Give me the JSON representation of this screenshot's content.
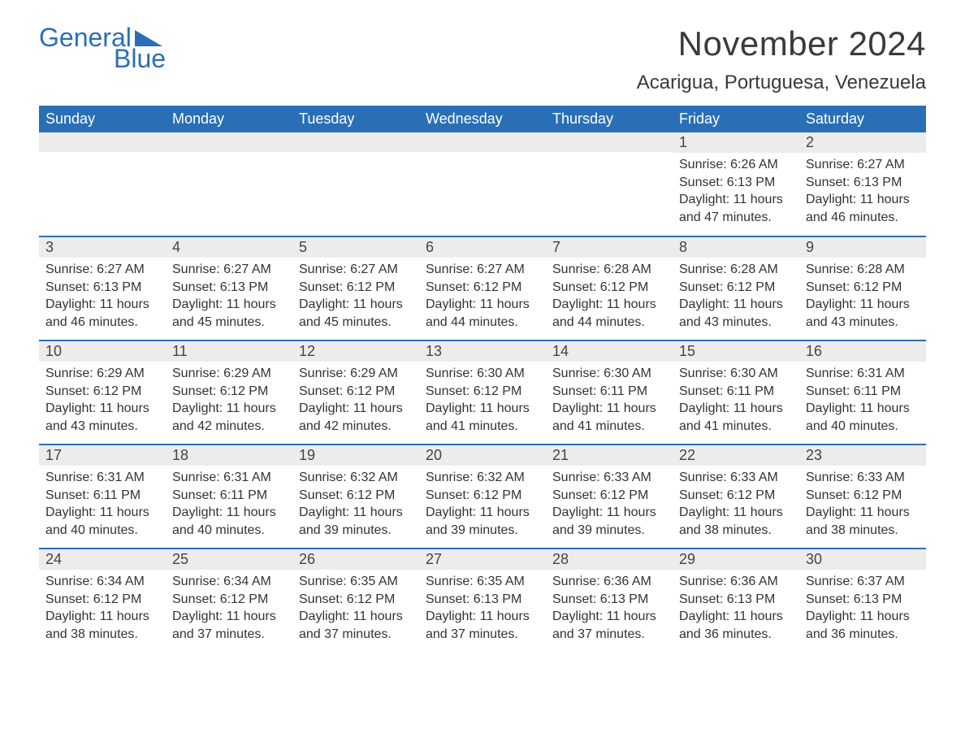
{
  "logo": {
    "text_top": "General",
    "text_bottom": "Blue",
    "color": "#2a6fb6"
  },
  "title": "November 2024",
  "location": "Acarigua, Portuguesa, Venezuela",
  "colors": {
    "header_bg": "#2a6fb6",
    "header_text": "#ffffff",
    "daynum_bg": "#ececec",
    "body_text": "#333333",
    "rule": "#2a6fb6",
    "page_bg": "#ffffff"
  },
  "day_headers": [
    "Sunday",
    "Monday",
    "Tuesday",
    "Wednesday",
    "Thursday",
    "Friday",
    "Saturday"
  ],
  "weeks": [
    [
      {
        "day": "",
        "sunrise": "",
        "sunset": "",
        "daylight": ""
      },
      {
        "day": "",
        "sunrise": "",
        "sunset": "",
        "daylight": ""
      },
      {
        "day": "",
        "sunrise": "",
        "sunset": "",
        "daylight": ""
      },
      {
        "day": "",
        "sunrise": "",
        "sunset": "",
        "daylight": ""
      },
      {
        "day": "",
        "sunrise": "",
        "sunset": "",
        "daylight": ""
      },
      {
        "day": "1",
        "sunrise": "Sunrise: 6:26 AM",
        "sunset": "Sunset: 6:13 PM",
        "daylight": "Daylight: 11 hours and 47 minutes."
      },
      {
        "day": "2",
        "sunrise": "Sunrise: 6:27 AM",
        "sunset": "Sunset: 6:13 PM",
        "daylight": "Daylight: 11 hours and 46 minutes."
      }
    ],
    [
      {
        "day": "3",
        "sunrise": "Sunrise: 6:27 AM",
        "sunset": "Sunset: 6:13 PM",
        "daylight": "Daylight: 11 hours and 46 minutes."
      },
      {
        "day": "4",
        "sunrise": "Sunrise: 6:27 AM",
        "sunset": "Sunset: 6:13 PM",
        "daylight": "Daylight: 11 hours and 45 minutes."
      },
      {
        "day": "5",
        "sunrise": "Sunrise: 6:27 AM",
        "sunset": "Sunset: 6:12 PM",
        "daylight": "Daylight: 11 hours and 45 minutes."
      },
      {
        "day": "6",
        "sunrise": "Sunrise: 6:27 AM",
        "sunset": "Sunset: 6:12 PM",
        "daylight": "Daylight: 11 hours and 44 minutes."
      },
      {
        "day": "7",
        "sunrise": "Sunrise: 6:28 AM",
        "sunset": "Sunset: 6:12 PM",
        "daylight": "Daylight: 11 hours and 44 minutes."
      },
      {
        "day": "8",
        "sunrise": "Sunrise: 6:28 AM",
        "sunset": "Sunset: 6:12 PM",
        "daylight": "Daylight: 11 hours and 43 minutes."
      },
      {
        "day": "9",
        "sunrise": "Sunrise: 6:28 AM",
        "sunset": "Sunset: 6:12 PM",
        "daylight": "Daylight: 11 hours and 43 minutes."
      }
    ],
    [
      {
        "day": "10",
        "sunrise": "Sunrise: 6:29 AM",
        "sunset": "Sunset: 6:12 PM",
        "daylight": "Daylight: 11 hours and 43 minutes."
      },
      {
        "day": "11",
        "sunrise": "Sunrise: 6:29 AM",
        "sunset": "Sunset: 6:12 PM",
        "daylight": "Daylight: 11 hours and 42 minutes."
      },
      {
        "day": "12",
        "sunrise": "Sunrise: 6:29 AM",
        "sunset": "Sunset: 6:12 PM",
        "daylight": "Daylight: 11 hours and 42 minutes."
      },
      {
        "day": "13",
        "sunrise": "Sunrise: 6:30 AM",
        "sunset": "Sunset: 6:12 PM",
        "daylight": "Daylight: 11 hours and 41 minutes."
      },
      {
        "day": "14",
        "sunrise": "Sunrise: 6:30 AM",
        "sunset": "Sunset: 6:11 PM",
        "daylight": "Daylight: 11 hours and 41 minutes."
      },
      {
        "day": "15",
        "sunrise": "Sunrise: 6:30 AM",
        "sunset": "Sunset: 6:11 PM",
        "daylight": "Daylight: 11 hours and 41 minutes."
      },
      {
        "day": "16",
        "sunrise": "Sunrise: 6:31 AM",
        "sunset": "Sunset: 6:11 PM",
        "daylight": "Daylight: 11 hours and 40 minutes."
      }
    ],
    [
      {
        "day": "17",
        "sunrise": "Sunrise: 6:31 AM",
        "sunset": "Sunset: 6:11 PM",
        "daylight": "Daylight: 11 hours and 40 minutes."
      },
      {
        "day": "18",
        "sunrise": "Sunrise: 6:31 AM",
        "sunset": "Sunset: 6:11 PM",
        "daylight": "Daylight: 11 hours and 40 minutes."
      },
      {
        "day": "19",
        "sunrise": "Sunrise: 6:32 AM",
        "sunset": "Sunset: 6:12 PM",
        "daylight": "Daylight: 11 hours and 39 minutes."
      },
      {
        "day": "20",
        "sunrise": "Sunrise: 6:32 AM",
        "sunset": "Sunset: 6:12 PM",
        "daylight": "Daylight: 11 hours and 39 minutes."
      },
      {
        "day": "21",
        "sunrise": "Sunrise: 6:33 AM",
        "sunset": "Sunset: 6:12 PM",
        "daylight": "Daylight: 11 hours and 39 minutes."
      },
      {
        "day": "22",
        "sunrise": "Sunrise: 6:33 AM",
        "sunset": "Sunset: 6:12 PM",
        "daylight": "Daylight: 11 hours and 38 minutes."
      },
      {
        "day": "23",
        "sunrise": "Sunrise: 6:33 AM",
        "sunset": "Sunset: 6:12 PM",
        "daylight": "Daylight: 11 hours and 38 minutes."
      }
    ],
    [
      {
        "day": "24",
        "sunrise": "Sunrise: 6:34 AM",
        "sunset": "Sunset: 6:12 PM",
        "daylight": "Daylight: 11 hours and 38 minutes."
      },
      {
        "day": "25",
        "sunrise": "Sunrise: 6:34 AM",
        "sunset": "Sunset: 6:12 PM",
        "daylight": "Daylight: 11 hours and 37 minutes."
      },
      {
        "day": "26",
        "sunrise": "Sunrise: 6:35 AM",
        "sunset": "Sunset: 6:12 PM",
        "daylight": "Daylight: 11 hours and 37 minutes."
      },
      {
        "day": "27",
        "sunrise": "Sunrise: 6:35 AM",
        "sunset": "Sunset: 6:13 PM",
        "daylight": "Daylight: 11 hours and 37 minutes."
      },
      {
        "day": "28",
        "sunrise": "Sunrise: 6:36 AM",
        "sunset": "Sunset: 6:13 PM",
        "daylight": "Daylight: 11 hours and 37 minutes."
      },
      {
        "day": "29",
        "sunrise": "Sunrise: 6:36 AM",
        "sunset": "Sunset: 6:13 PM",
        "daylight": "Daylight: 11 hours and 36 minutes."
      },
      {
        "day": "30",
        "sunrise": "Sunrise: 6:37 AM",
        "sunset": "Sunset: 6:13 PM",
        "daylight": "Daylight: 11 hours and 36 minutes."
      }
    ]
  ]
}
